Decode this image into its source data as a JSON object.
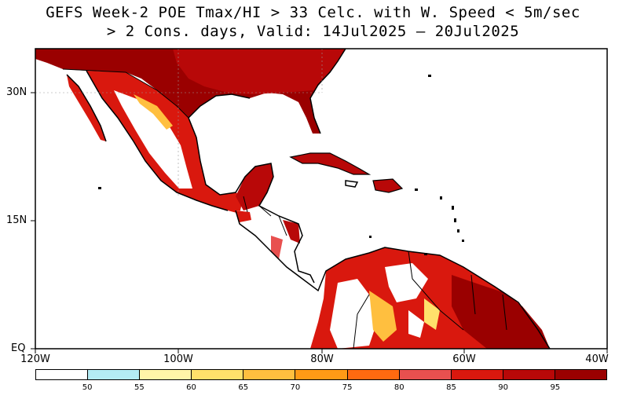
{
  "title_line1": "GEFS Week-2 POE Tmax/HI > 33 Celc. with W. Speed < 5m/sec",
  "title_line2": "> 2 Cons. days, Valid: 14Jul2025 – 20Jul2025",
  "lat_labels": [
    "30N",
    "15N",
    "EQ"
  ],
  "lon_labels": [
    "120W",
    "100W",
    "80W",
    "60W",
    "40W"
  ],
  "colorbar": {
    "labels": [
      "50",
      "55",
      "60",
      "65",
      "70",
      "75",
      "80",
      "85",
      "90",
      "95"
    ],
    "colors": [
      "#ffffff",
      "#b4ecf4",
      "#fff5a8",
      "#ffe16b",
      "#ffbf3f",
      "#ff9a16",
      "#ff6a10",
      "#e8504f",
      "#d9180e",
      "#b80808",
      "#9a0000"
    ]
  }
}
